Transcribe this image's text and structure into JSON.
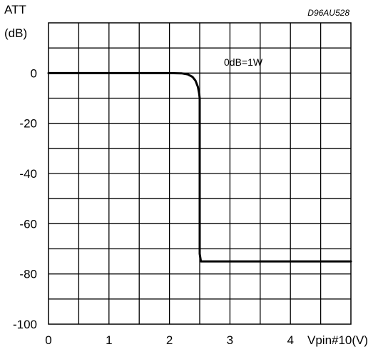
{
  "chart_data": {
    "type": "line",
    "ylabel_line1": "ATT",
    "ylabel_line2": "(dB)",
    "xlabel": "Vpin#10(V)",
    "figure_code": "D96AU528",
    "annotation": "0dB=1W",
    "xlim": [
      0,
      5
    ],
    "ylim": [
      -100,
      20
    ],
    "x_ticks": [
      0,
      1,
      2,
      3,
      4
    ],
    "x_tick_labels": [
      "0",
      "1",
      "2",
      "3",
      "4"
    ],
    "y_ticks": [
      0,
      -20,
      -40,
      -60,
      -80,
      -100
    ],
    "y_tick_labels": [
      "0",
      "-20",
      "-40",
      "-60",
      "-80",
      "-100"
    ],
    "grid": true,
    "grid_x_step": 0.5,
    "grid_y_step": 10,
    "series": [
      {
        "x": [
          0,
          0.5,
          1,
          1.5,
          2,
          2.2,
          2.3,
          2.38,
          2.43,
          2.47,
          2.49,
          2.5,
          2.5,
          2.52,
          2.6,
          3,
          3.5,
          4,
          4.5,
          5
        ],
        "y": [
          0,
          0,
          0,
          0,
          0,
          -0.1,
          -0.5,
          -1.5,
          -3,
          -5.5,
          -8,
          -10,
          -72,
          -75,
          -75,
          -75,
          -75,
          -75,
          -75,
          -75
        ]
      }
    ]
  },
  "colors": {
    "line": "#000000",
    "grid": "#000000",
    "background": "#ffffff"
  }
}
